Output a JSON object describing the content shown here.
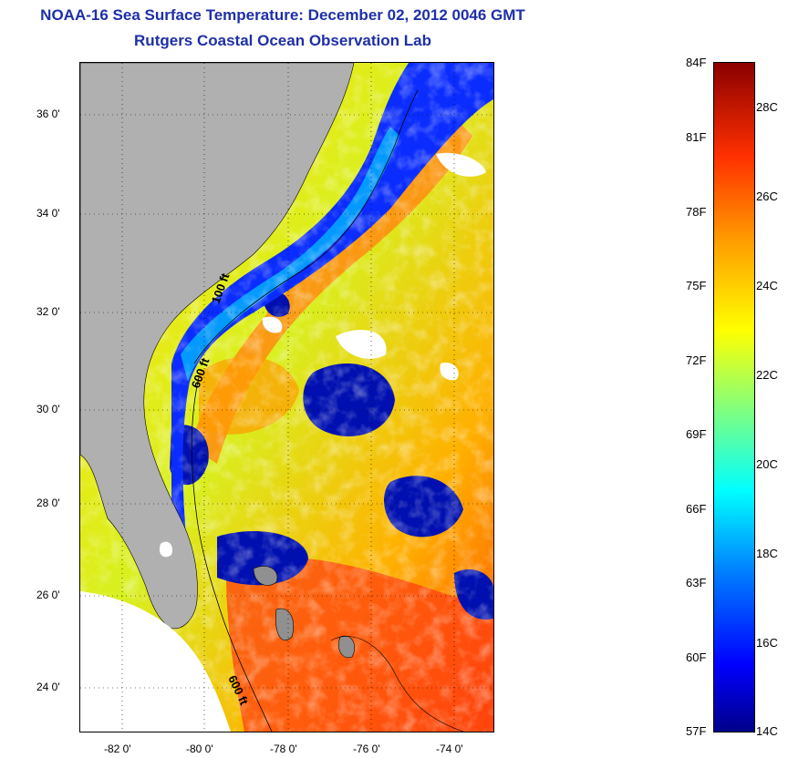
{
  "title": {
    "line1": "NOAA-16 Sea Surface Temperature:  December 02, 2012 0046 GMT",
    "line2": "Rutgers Coastal Ocean Observation Lab"
  },
  "map": {
    "latitude_labels": [
      "36 0'",
      "34 0'",
      "32 0'",
      "30 0'",
      "28 0'",
      "26 0'",
      "24 0'"
    ],
    "longitude_labels": [
      "-82 0'",
      "-80 0'",
      "-78 0'",
      "-76 0'",
      "-74 0'"
    ],
    "contour_labels": [
      "100 ft",
      "600 ft",
      "600 ft"
    ]
  },
  "colorbar": {
    "fahrenheit_labels": [
      "84F",
      "81F",
      "78F",
      "75F",
      "72F",
      "69F",
      "66F",
      "63F",
      "60F",
      "57F"
    ],
    "celsius_labels": [
      "28C",
      "26C",
      "24C",
      "22C",
      "20C",
      "18C",
      "16C",
      "14C"
    ],
    "colors": {
      "min": "#00008a",
      "low": "#0000ff",
      "mid_low": "#00ffff",
      "mid": "#ffff00",
      "mid_high": "#ffa000",
      "max": "#8b0000"
    }
  },
  "colors": {
    "title": "#1f2fa8",
    "land": "#b0b0b0",
    "cloud": "#ffffff"
  }
}
